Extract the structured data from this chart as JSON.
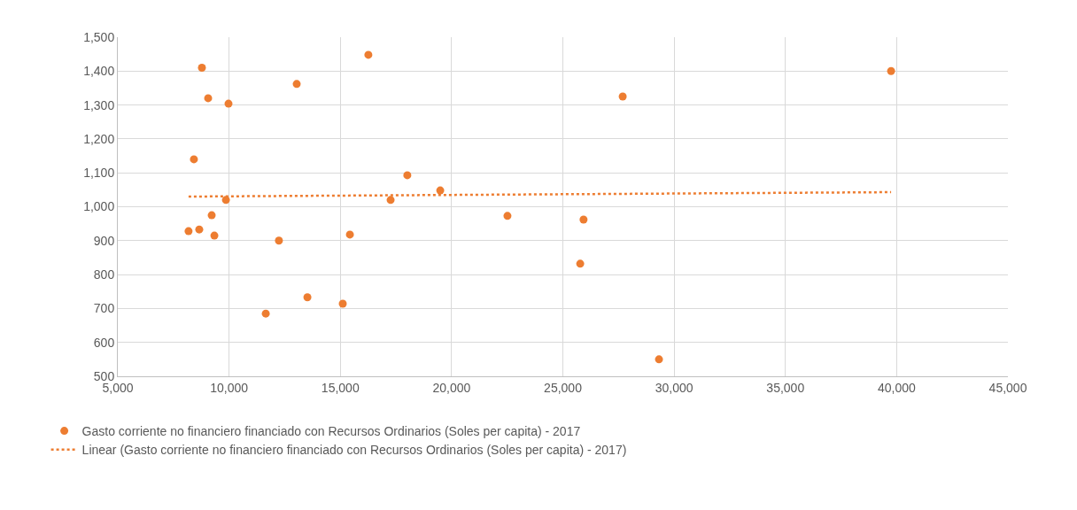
{
  "chart_data": {
    "type": "scatter",
    "xlim": [
      5000,
      45000
    ],
    "xticks": [
      {
        "value": 5000,
        "label": "5,000"
      },
      {
        "value": 10000,
        "label": "10,000"
      },
      {
        "value": 15000,
        "label": "15,000"
      },
      {
        "value": 20000,
        "label": "20,000"
      },
      {
        "value": 25000,
        "label": "25,000"
      },
      {
        "value": 30000,
        "label": "30,000"
      },
      {
        "value": 35000,
        "label": "35,000"
      },
      {
        "value": 40000,
        "label": "40,000"
      },
      {
        "value": 45000,
        "label": "45,000"
      }
    ],
    "ylim": [
      500,
      1500
    ],
    "yticks": [
      500,
      600,
      700,
      800,
      900,
      {
        "value": 1000,
        "label": "1,000"
      },
      {
        "value": 1100,
        "label": "1,100"
      },
      {
        "value": 1200,
        "label": "1,200"
      },
      {
        "value": 1300,
        "label": "1,300"
      },
      {
        "value": 1400,
        "label": "1,400"
      },
      {
        "value": 1500,
        "label": "1,500"
      }
    ],
    "grid": true,
    "legend": "bottom",
    "marker": "circle",
    "series": [
      {
        "name": "Gasto corriente no financiero financiado con Recursos Ordinarios (Soles per capita) - 2017",
        "color": "#ed7d31",
        "x": [
          8780,
          9060,
          9975,
          8420,
          8180,
          8660,
          9220,
          9340,
          9860,
          11650,
          12240,
          13040,
          13520,
          15110,
          15430,
          16260,
          17260,
          18010,
          19490,
          22510,
          25780,
          25930,
          27690,
          29320,
          39750
        ],
        "values": [
          1410,
          1320,
          1304,
          1140,
          928,
          933,
          975,
          915,
          1020,
          685,
          900,
          1362,
          733,
          714,
          918,
          1448,
          1020,
          1093,
          1048,
          973,
          832,
          962,
          1325,
          550,
          1400
        ]
      },
      {
        "name": "Linear (Gasto corriente no financiero financiado con Recursos Ordinarios (Soles per capita) - 2017)",
        "color": "#ed7d31",
        "type": "line",
        "line_style": "dotted",
        "marker": "none",
        "x": [
          8180,
          39750
        ],
        "values": [
          1030,
          1043
        ]
      }
    ]
  }
}
